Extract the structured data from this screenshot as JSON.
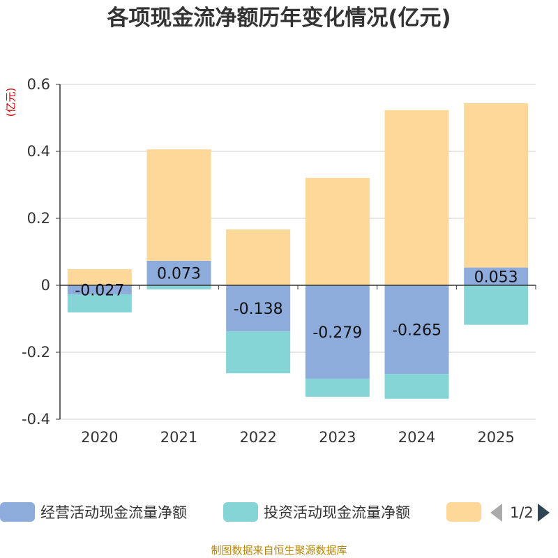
{
  "title": "各项现金流净额历年变化情况(亿元)",
  "unit_label": "(亿元)",
  "source": "制图数据来自恒生聚源数据库",
  "pager": "1/2",
  "colors": {
    "operating": "#8eacdb",
    "investing": "#85d4d6",
    "third": "#fed898",
    "axis": "#333333",
    "grid": "#cccccc",
    "text": "#333333"
  },
  "chart_data": {
    "type": "bar",
    "stacked": true,
    "categories": [
      "2020",
      "2021",
      "2022",
      "2023",
      "2024",
      "2025"
    ],
    "ylim": [
      -0.4,
      0.6
    ],
    "yticks": [
      -0.4,
      -0.2,
      0,
      0.2,
      0.4,
      0.6
    ],
    "ytick_labels": [
      "-0.4",
      "-0.2",
      "0",
      "0.2",
      "0.4",
      "0.6"
    ],
    "series": [
      {
        "name": "经营活动现金流量净额",
        "values": [
          -0.027,
          0.073,
          -0.138,
          -0.279,
          -0.265,
          0.053
        ],
        "labels": [
          "-0.027",
          "0.073",
          "-0.138",
          "-0.279",
          "-0.265",
          "0.053"
        ],
        "color": "#8eacdb"
      },
      {
        "name": "投资活动现金流量净额",
        "values": [
          -0.054,
          -0.012,
          -0.125,
          -0.054,
          -0.074,
          -0.118
        ],
        "color": "#85d4d6"
      },
      {
        "name": "",
        "values": [
          0.048,
          0.333,
          0.167,
          0.321,
          0.523,
          0.491
        ],
        "color": "#fed898"
      }
    ]
  }
}
